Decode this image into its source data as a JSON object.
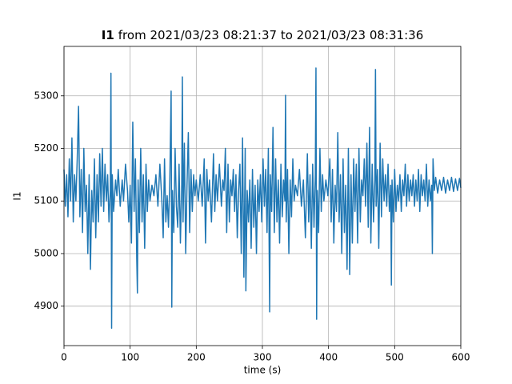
{
  "chart_data": {
    "type": "line",
    "title_label": "I1",
    "title": "from 2021/03/23 08:21:37 to 2021/03/23 08:31:36",
    "x_label": "time (s)",
    "y_label": "I1",
    "color": "#1f77b4",
    "grid": true,
    "xlim": [
      0,
      600
    ],
    "xticks": [
      0,
      100,
      200,
      300,
      400,
      500,
      600
    ],
    "ylim": [
      4825,
      5394
    ],
    "yticks": [
      4900,
      5000,
      5100,
      5200,
      5300
    ],
    "x": [
      0,
      2,
      4,
      6,
      8,
      10,
      12,
      14,
      16,
      18,
      20,
      22,
      24,
      26,
      28,
      30,
      32,
      34,
      36,
      38,
      40,
      42,
      44,
      46,
      48,
      50,
      52,
      54,
      56,
      58,
      60,
      62,
      64,
      66,
      68,
      70,
      71,
      72,
      73,
      75,
      78,
      80,
      82,
      85,
      88,
      90,
      93,
      96,
      98,
      100,
      102,
      104,
      106,
      108,
      110,
      111,
      112,
      114,
      116,
      118,
      120,
      122,
      124,
      126,
      128,
      130,
      133,
      136,
      139,
      142,
      145,
      148,
      150,
      152,
      154,
      156,
      158,
      160,
      162,
      163,
      164,
      166,
      168,
      170,
      172,
      174,
      176,
      178,
      179,
      180,
      182,
      184,
      186,
      188,
      190,
      192,
      194,
      196,
      198,
      200,
      203,
      206,
      209,
      212,
      214,
      216,
      218,
      220,
      223,
      226,
      228,
      230,
      232,
      235,
      238,
      240,
      242,
      244,
      246,
      248,
      250,
      252,
      254,
      256,
      258,
      260,
      262,
      264,
      266,
      268,
      270,
      272,
      274,
      275,
      277,
      279,
      281,
      283,
      285,
      287,
      289,
      291,
      293,
      295,
      297,
      299,
      301,
      303,
      305,
      307,
      309,
      311,
      312,
      314,
      316,
      318,
      320,
      322,
      324,
      326,
      328,
      330,
      332,
      334,
      335,
      336,
      338,
      340,
      342,
      344,
      346,
      348,
      350,
      353,
      356,
      359,
      362,
      365,
      368,
      370,
      372,
      374,
      376,
      378,
      380,
      381,
      382,
      383,
      385,
      387,
      389,
      391,
      393,
      396,
      399,
      402,
      404,
      406,
      408,
      410,
      412,
      414,
      416,
      418,
      420,
      422,
      424,
      426,
      428,
      430,
      432,
      434,
      436,
      438,
      440,
      442,
      444,
      446,
      448,
      450,
      452,
      454,
      456,
      458,
      460,
      462,
      464,
      466,
      468,
      470,
      471,
      472,
      474,
      476,
      478,
      480,
      482,
      484,
      486,
      488,
      490,
      492,
      494,
      495,
      496,
      498,
      500,
      502,
      504,
      506,
      508,
      510,
      512,
      514,
      516,
      518,
      520,
      522,
      524,
      526,
      528,
      530,
      532,
      534,
      536,
      538,
      540,
      542,
      544,
      546,
      548,
      550,
      552,
      554,
      556,
      557,
      558,
      560,
      562,
      565,
      568,
      571,
      574,
      577,
      580,
      583,
      586,
      589,
      592,
      595,
      598,
      600
    ],
    "values": [
      5160,
      5090,
      5150,
      5070,
      5180,
      5100,
      5220,
      5060,
      5150,
      5100,
      5180,
      5280,
      5070,
      5160,
      5040,
      5200,
      5080,
      5130,
      5000,
      5150,
      4970,
      5120,
      5060,
      5180,
      5030,
      5150,
      5060,
      5190,
      5090,
      5200,
      5080,
      5170,
      5100,
      5150,
      5060,
      5120,
      5343,
      4858,
      5150,
      5080,
      5140,
      5110,
      5160,
      5090,
      5140,
      5100,
      5170,
      5120,
      5060,
      5130,
      5020,
      5250,
      5080,
      5180,
      4990,
      4925,
      5140,
      5040,
      5200,
      5060,
      5150,
      5010,
      5170,
      5080,
      5140,
      5100,
      5130,
      5110,
      5150,
      5090,
      5170,
      5100,
      5030,
      5180,
      5060,
      5110,
      5050,
      5140,
      5309,
      4898,
      5120,
      5040,
      5200,
      5090,
      5050,
      5170,
      5020,
      5130,
      5336,
      5060,
      5210,
      5000,
      5130,
      5230,
      5040,
      5160,
      5080,
      5150,
      5110,
      5140,
      5100,
      5150,
      5090,
      5180,
      5020,
      5160,
      5100,
      5140,
      5060,
      5190,
      5080,
      5150,
      5100,
      5170,
      5090,
      5140,
      5120,
      5200,
      5040,
      5170,
      5060,
      5140,
      5110,
      5160,
      5080,
      5150,
      5030,
      5120,
      5170,
      5000,
      5220,
      4955,
      5200,
      4929,
      5120,
      5060,
      5140,
      5010,
      5160,
      5050,
      5130,
      5000,
      5140,
      5080,
      5150,
      5060,
      5180,
      5090,
      5160,
      5040,
      5200,
      4889,
      5150,
      5080,
      5240,
      5040,
      5180,
      5060,
      5140,
      5020,
      5170,
      5070,
      5140,
      5100,
      5301,
      5060,
      5160,
      5000,
      5140,
      5070,
      5180,
      5100,
      5130,
      5110,
      5160,
      5090,
      5140,
      5030,
      5190,
      5060,
      5150,
      5010,
      5170,
      5050,
      5150,
      5353,
      4875,
      5120,
      5040,
      5200,
      5080,
      5150,
      5100,
      5140,
      5110,
      5180,
      5060,
      5160,
      5020,
      5130,
      5080,
      5230,
      5060,
      5150,
      5000,
      5180,
      5040,
      5130,
      4970,
      5200,
      4960,
      5150,
      5020,
      5180,
      5080,
      5170,
      5020,
      5200,
      5060,
      5140,
      5110,
      5180,
      5090,
      5210,
      5050,
      5240,
      5020,
      5170,
      5060,
      5140,
      5350,
      5090,
      5160,
      5010,
      5210,
      5070,
      5180,
      5100,
      5150,
      5090,
      5170,
      5080,
      5130,
      4940,
      5140,
      5060,
      5160,
      5080,
      5130,
      5100,
      5150,
      5080,
      5140,
      5110,
      5170,
      5090,
      5150,
      5100,
      5140,
      5110,
      5150,
      5090,
      5140,
      5100,
      5160,
      5080,
      5150,
      5110,
      5140,
      5100,
      5170,
      5090,
      5140,
      5100,
      5130,
      5000,
      5180,
      5120,
      5145,
      5115,
      5140,
      5120,
      5145,
      5115,
      5140,
      5120,
      5145,
      5118,
      5142,
      5120,
      5143,
      5125
    ]
  }
}
